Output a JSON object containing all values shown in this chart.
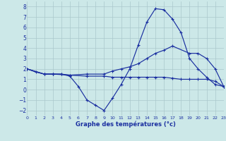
{
  "xlabel": "Graphe des températures (°c)",
  "xlim": [
    0,
    23
  ],
  "ylim": [
    -2.5,
    8.5
  ],
  "xticks": [
    0,
    1,
    2,
    3,
    4,
    5,
    6,
    7,
    8,
    9,
    10,
    11,
    12,
    13,
    14,
    15,
    16,
    17,
    18,
    19,
    20,
    21,
    22,
    23
  ],
  "yticks": [
    -2,
    -1,
    0,
    1,
    2,
    3,
    4,
    5,
    6,
    7,
    8
  ],
  "background_color": "#cce8e8",
  "grid_color": "#aac8cc",
  "line_color": "#1a2fa0",
  "lines": [
    {
      "x": [
        0,
        2,
        3,
        4,
        5,
        7,
        9,
        10,
        11,
        12,
        13,
        14,
        15,
        16,
        17,
        18,
        19,
        20,
        21,
        22,
        23
      ],
      "y": [
        2,
        1.5,
        1.5,
        1.5,
        1.4,
        1.3,
        1.3,
        1.2,
        1.2,
        1.2,
        1.2,
        1.2,
        1.2,
        1.2,
        1.1,
        1.0,
        1.0,
        1.0,
        1.0,
        0.8,
        0.3
      ]
    },
    {
      "x": [
        0,
        2,
        3,
        5,
        7,
        9,
        10,
        11,
        12,
        13,
        14,
        15,
        16,
        17,
        19,
        20,
        21,
        22,
        23
      ],
      "y": [
        2,
        1.5,
        1.5,
        1.4,
        1.5,
        1.5,
        1.8,
        2.0,
        2.2,
        2.5,
        3.0,
        3.5,
        3.8,
        4.2,
        3.5,
        3.5,
        3.0,
        2.0,
        0.3
      ]
    },
    {
      "x": [
        0,
        1,
        2,
        3,
        4,
        5,
        6,
        7,
        8,
        9,
        10,
        11,
        12,
        13,
        14,
        15,
        16,
        17,
        18,
        19,
        20,
        21,
        22,
        23
      ],
      "y": [
        2,
        1.7,
        1.5,
        1.5,
        1.5,
        1.3,
        0.3,
        -1.0,
        -1.5,
        -2.0,
        -0.8,
        0.5,
        2.0,
        4.3,
        6.5,
        7.8,
        7.7,
        6.8,
        5.5,
        3.0,
        2.0,
        1.2,
        0.5,
        0.3
      ]
    }
  ]
}
